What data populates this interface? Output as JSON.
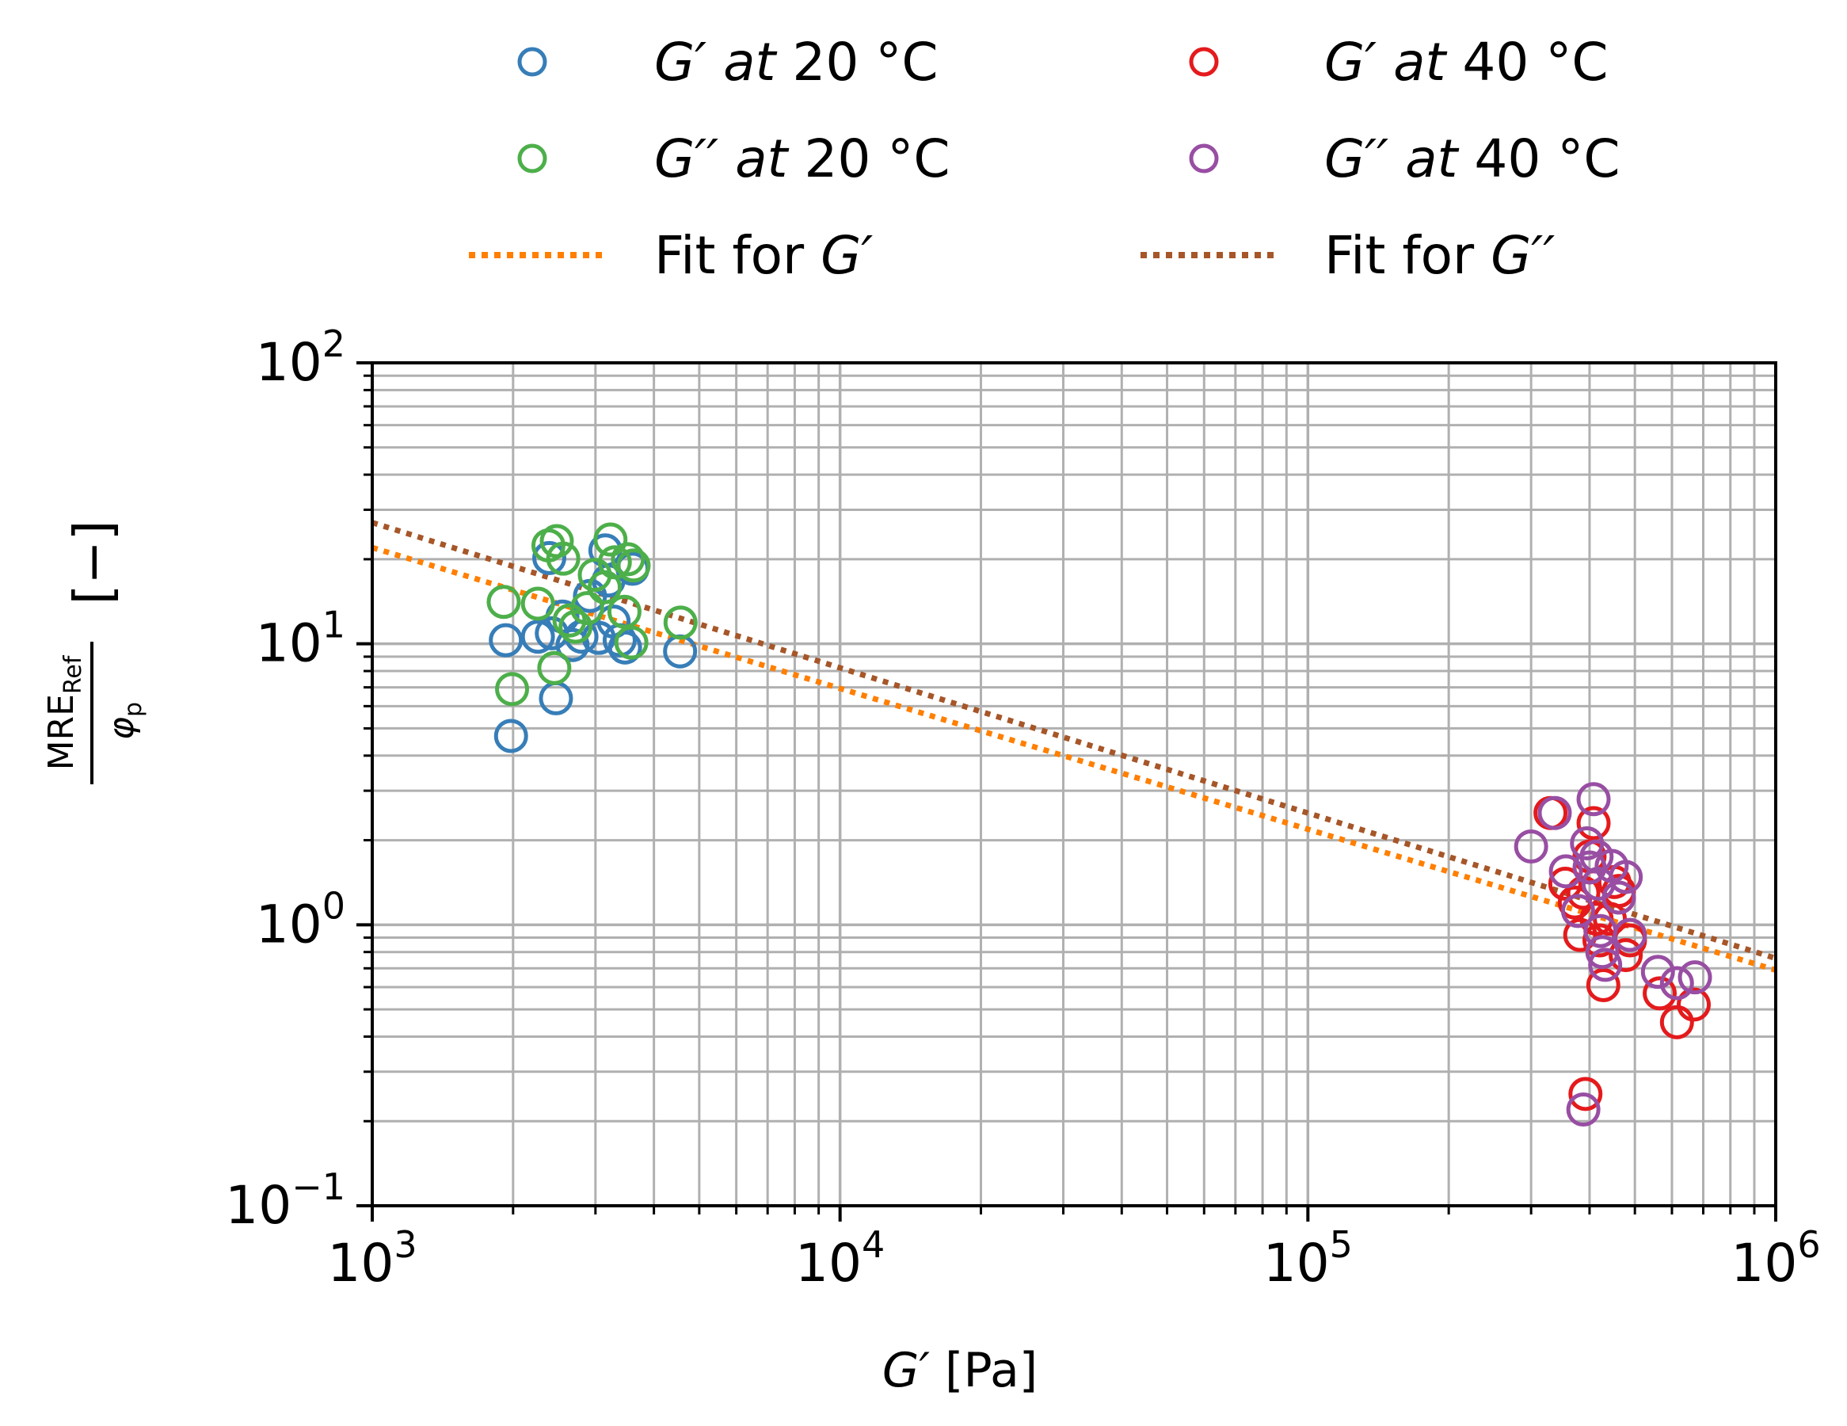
{
  "chart_data": {
    "type": "scatter",
    "xscale": "log",
    "yscale": "log",
    "xlim": [
      1000,
      1000000
    ],
    "ylim": [
      0.1,
      100
    ],
    "grid": true,
    "legend_position": "top",
    "xlabel": "G′ [Pa]",
    "ylabel": "MRE_Ref / φ_p [−]",
    "x_ticks": [
      {
        "mant": "10",
        "exp": "3",
        "value": 1000
      },
      {
        "mant": "10",
        "exp": "4",
        "value": 10000
      },
      {
        "mant": "10",
        "exp": "5",
        "value": 100000
      },
      {
        "mant": "10",
        "exp": "6",
        "value": 1000000
      }
    ],
    "y_ticks": [
      {
        "mant": "10",
        "exp": "−1",
        "value": 0.1
      },
      {
        "mant": "10",
        "exp": "0",
        "value": 1
      },
      {
        "mant": "10",
        "exp": "1",
        "value": 10
      },
      {
        "mant": "10",
        "exp": "2",
        "value": 100
      }
    ],
    "series": [
      {
        "name": "G′ at 20 °C",
        "label_main": "G′ at",
        "label_temp": " 20 °C",
        "color": "#377eb8",
        "marker": "open-circle",
        "points": [
          [
            1930,
            10.3
          ],
          [
            1980,
            4.7
          ],
          [
            2260,
            10.6
          ],
          [
            2390,
            20.2
          ],
          [
            2420,
            10.9
          ],
          [
            2470,
            6.4
          ],
          [
            2550,
            12.5
          ],
          [
            2680,
            9.9
          ],
          [
            2800,
            10.6
          ],
          [
            2920,
            14.8
          ],
          [
            3050,
            10.5
          ],
          [
            3150,
            21.5
          ],
          [
            3200,
            16.8
          ],
          [
            3280,
            12.0
          ],
          [
            3380,
            10.3
          ],
          [
            3470,
            9.7
          ],
          [
            3600,
            18.5
          ],
          [
            4550,
            9.4
          ]
        ]
      },
      {
        "name": "G′′ at 20 °C",
        "label_main": "G′′ at",
        "label_temp": " 20 °C",
        "color": "#4daf4a",
        "marker": "open-circle",
        "points": [
          [
            1910,
            14.1
          ],
          [
            1990,
            6.9
          ],
          [
            2260,
            13.9
          ],
          [
            2380,
            22.4
          ],
          [
            2450,
            8.2
          ],
          [
            2480,
            23.2
          ],
          [
            2560,
            20.1
          ],
          [
            2640,
            12.1
          ],
          [
            2720,
            11.5
          ],
          [
            2880,
            13.4
          ],
          [
            2990,
            17.6
          ],
          [
            3140,
            15.9
          ],
          [
            3230,
            23.5
          ],
          [
            3300,
            19.5
          ],
          [
            3460,
            13.0
          ],
          [
            3520,
            20.0
          ],
          [
            3620,
            19.0
          ],
          [
            3580,
            10.1
          ],
          [
            4560,
            11.9
          ]
        ]
      },
      {
        "name": "G′ at 40 °C",
        "label_main": "G′ at",
        "label_temp": " 40 °C",
        "color": "#e41a1c",
        "marker": "open-circle",
        "points": [
          [
            330000,
            2.5
          ],
          [
            355000,
            1.4
          ],
          [
            372000,
            1.2
          ],
          [
            382000,
            0.92
          ],
          [
            388000,
            1.3
          ],
          [
            392000,
            0.25
          ],
          [
            400000,
            1.75
          ],
          [
            408000,
            2.3
          ],
          [
            414000,
            1.05
          ],
          [
            420000,
            0.88
          ],
          [
            428000,
            0.61
          ],
          [
            442000,
            1.05
          ],
          [
            452000,
            1.42
          ],
          [
            462000,
            1.32
          ],
          [
            478000,
            0.78
          ],
          [
            488000,
            0.88
          ],
          [
            565000,
            0.57
          ],
          [
            615000,
            0.45
          ],
          [
            668000,
            0.52
          ]
        ]
      },
      {
        "name": "G′′ at 40 °C",
        "label_main": "G′′ at",
        "label_temp": " 40 °C",
        "color": "#984ea3",
        "marker": "open-circle",
        "points": [
          [
            300000,
            1.9
          ],
          [
            337000,
            2.5
          ],
          [
            356000,
            1.55
          ],
          [
            378000,
            1.12
          ],
          [
            388000,
            0.22
          ],
          [
            395000,
            1.95
          ],
          [
            400000,
            1.6
          ],
          [
            408000,
            2.8
          ],
          [
            414000,
            1.75
          ],
          [
            418000,
            1.4
          ],
          [
            422000,
            0.95
          ],
          [
            426000,
            0.8
          ],
          [
            432000,
            0.72
          ],
          [
            446000,
            1.62
          ],
          [
            462000,
            1.25
          ],
          [
            478000,
            1.48
          ],
          [
            488000,
            0.92
          ],
          [
            560000,
            0.68
          ],
          [
            615000,
            0.62
          ],
          [
            672000,
            0.65
          ]
        ]
      }
    ],
    "fits": [
      {
        "name": "Fit for G′",
        "label_main": "Fit for ",
        "label_sym": "G′",
        "color": "#ff7f00",
        "style": "dotted",
        "x": [
          1000,
          1000000
        ],
        "y": [
          22,
          0.69
        ]
      },
      {
        "name": "Fit for G′′",
        "label_main": "Fit for ",
        "label_sym": "G′′",
        "color": "#a65628",
        "style": "dotted",
        "x": [
          1000,
          1000000
        ],
        "y": [
          27,
          0.76
        ]
      }
    ],
    "axis_text": {
      "x_sym": "G′",
      "x_unit": " [Pa]",
      "y_num": "MRE",
      "y_num_sub": "Ref",
      "y_den": "φ",
      "y_den_sub": "p",
      "y_unit": "[−]"
    }
  }
}
